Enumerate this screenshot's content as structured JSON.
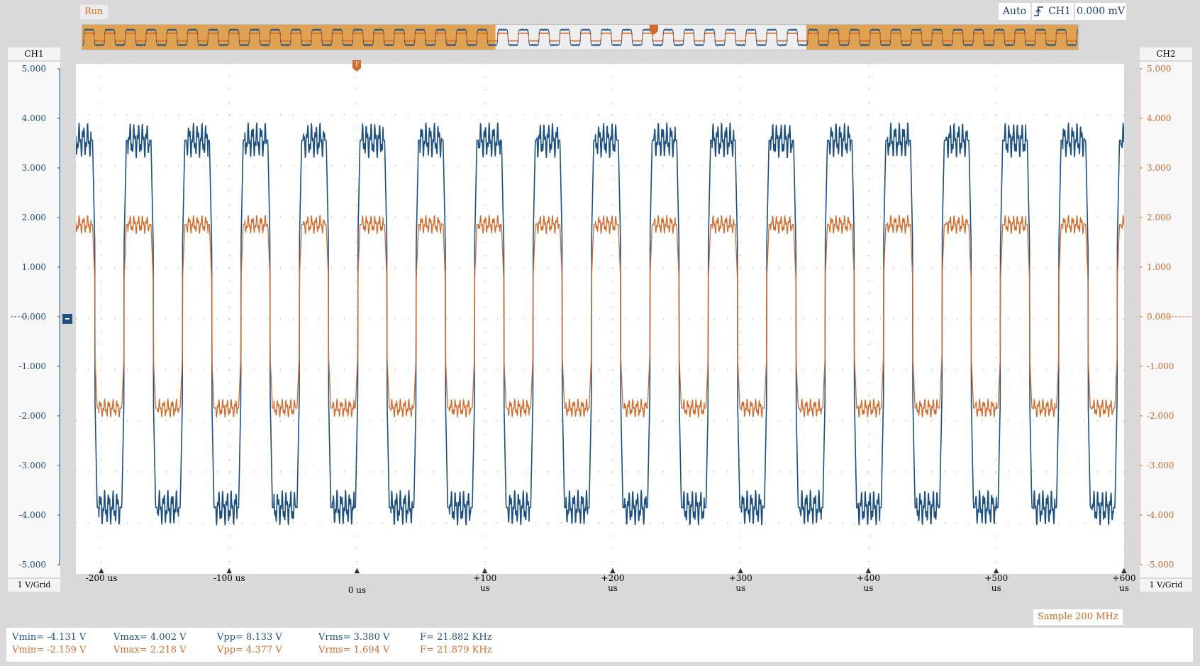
{
  "status": {
    "run_label": "Run"
  },
  "trigger": {
    "mode": "Auto",
    "source": "CH1",
    "level": "0.000 mV",
    "edge_icon": "rising-edge-icon"
  },
  "channels": {
    "ch1": {
      "label": "CH1",
      "scale": "1 V/Grid",
      "color": "#1c4f82"
    },
    "ch2": {
      "label": "CH2",
      "scale": "1 V/Grid",
      "color": "#d46a2a"
    }
  },
  "y_ticks": [
    "5.000",
    "4.000",
    "3.000",
    "2.000",
    "1.000",
    "0.000",
    "-1.000",
    "-2.000",
    "-3.000",
    "-4.000",
    "-5.000"
  ],
  "x_ticks": [
    "-200 us",
    "-100 us",
    "0 us",
    "+100 us",
    "+200 us",
    "+300 us",
    "+400 us",
    "+500 us",
    "+600 us"
  ],
  "sample_rate": "Sample 200 MHz",
  "measurements": {
    "ch1": {
      "vmin": "Vmin= -4.131 V",
      "vmax": "Vmax= 4.002 V",
      "vpp": "Vpp= 8.133 V",
      "vrms": "Vrms= 3.380 V",
      "freq": "F= 21.882 KHz"
    },
    "ch2": {
      "vmin": "Vmin= -2.159 V",
      "vmax": "Vmax= 2.218 V",
      "vpp": "Vpp= 4.377 V",
      "vrms": "Vrms= 1.694 V",
      "freq": "F= 21.879 KHz"
    }
  },
  "chart_data": {
    "type": "line",
    "xlabel": "",
    "ylabel": "",
    "xlim": [
      -220,
      600
    ],
    "ylim": [
      -5,
      5
    ],
    "x_unit": "us",
    "series": [
      {
        "name": "CH1",
        "color": "#1c4f82",
        "period_us": 45.7,
        "high": 3.5,
        "low": -3.7
      },
      {
        "name": "CH2",
        "color": "#d46a2a",
        "period_us": 45.7,
        "high": 1.85,
        "low": -1.75
      }
    ]
  }
}
